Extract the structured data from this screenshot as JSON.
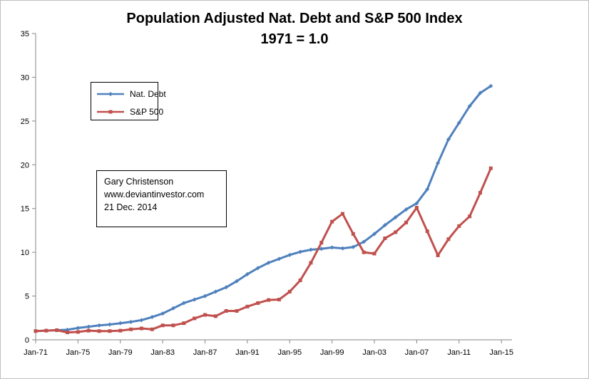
{
  "chart_data": {
    "type": "line",
    "title": "Population Adjusted Nat. Debt and S&P 500 Index",
    "subtitle": "1971 = 1.0",
    "xlabel": "",
    "ylabel": "",
    "ylim": [
      0,
      35
    ],
    "y_ticks": [
      0,
      5,
      10,
      15,
      20,
      25,
      30,
      35
    ],
    "x_tick_labels": [
      "Jan-71",
      "Jan-75",
      "Jan-79",
      "Jan-83",
      "Jan-87",
      "Jan-91",
      "Jan-95",
      "Jan-99",
      "Jan-03",
      "Jan-07",
      "Jan-11",
      "Jan-15"
    ],
    "x_tick_years": [
      1971,
      1975,
      1979,
      1983,
      1987,
      1991,
      1995,
      1999,
      2003,
      2007,
      2011,
      2015
    ],
    "xlim_years": [
      1971,
      2016
    ],
    "grid": false,
    "legend_position": "top-left",
    "series": [
      {
        "name": "Nat. Debt",
        "color": "#4f81bd",
        "marker": "diamond",
        "x": [
          1971,
          1972,
          1973,
          1974,
          1975,
          1976,
          1977,
          1978,
          1979,
          1980,
          1981,
          1982,
          1983,
          1984,
          1985,
          1986,
          1987,
          1988,
          1989,
          1990,
          1991,
          1992,
          1993,
          1994,
          1995,
          1996,
          1997,
          1998,
          1999,
          2000,
          2001,
          2002,
          2003,
          2004,
          2005,
          2006,
          2007,
          2008,
          2009,
          2010,
          2011,
          2012,
          2013,
          2014
        ],
        "values": [
          1.0,
          1.05,
          1.1,
          1.15,
          1.35,
          1.5,
          1.65,
          1.75,
          1.9,
          2.05,
          2.25,
          2.6,
          3.0,
          3.6,
          4.2,
          4.6,
          5.0,
          5.5,
          6.0,
          6.7,
          7.5,
          8.2,
          8.8,
          9.25,
          9.7,
          10.05,
          10.3,
          10.4,
          10.55,
          10.45,
          10.6,
          11.2,
          12.1,
          13.1,
          14.0,
          14.9,
          15.6,
          17.2,
          20.2,
          22.9,
          24.8,
          26.7,
          28.2,
          29.0
        ]
      },
      {
        "name": "S&P 500",
        "color": "#c0504d",
        "marker": "square",
        "x": [
          1971,
          1972,
          1973,
          1974,
          1975,
          1976,
          1977,
          1978,
          1979,
          1980,
          1981,
          1982,
          1983,
          1984,
          1985,
          1986,
          1987,
          1988,
          1989,
          1990,
          1991,
          1992,
          1993,
          1994,
          1995,
          1996,
          1997,
          1998,
          1999,
          2000,
          2001,
          2002,
          2003,
          2004,
          2005,
          2006,
          2007,
          2008,
          2009,
          2010,
          2011,
          2012,
          2013,
          2014
        ],
        "values": [
          1.0,
          1.05,
          1.1,
          0.85,
          0.9,
          1.05,
          1.0,
          1.0,
          1.05,
          1.2,
          1.3,
          1.2,
          1.65,
          1.65,
          1.9,
          2.45,
          2.85,
          2.7,
          3.3,
          3.3,
          3.8,
          4.2,
          4.55,
          4.6,
          5.5,
          6.8,
          8.8,
          11.1,
          13.5,
          14.4,
          12.1,
          10.0,
          9.85,
          11.6,
          12.3,
          13.4,
          15.1,
          12.4,
          9.65,
          11.5,
          13.0,
          14.1,
          16.8,
          19.6
        ]
      }
    ]
  },
  "note": {
    "line1": "Gary Christenson",
    "line2": "www.deviantinvestor.com",
    "line3": "21 Dec. 2014"
  }
}
